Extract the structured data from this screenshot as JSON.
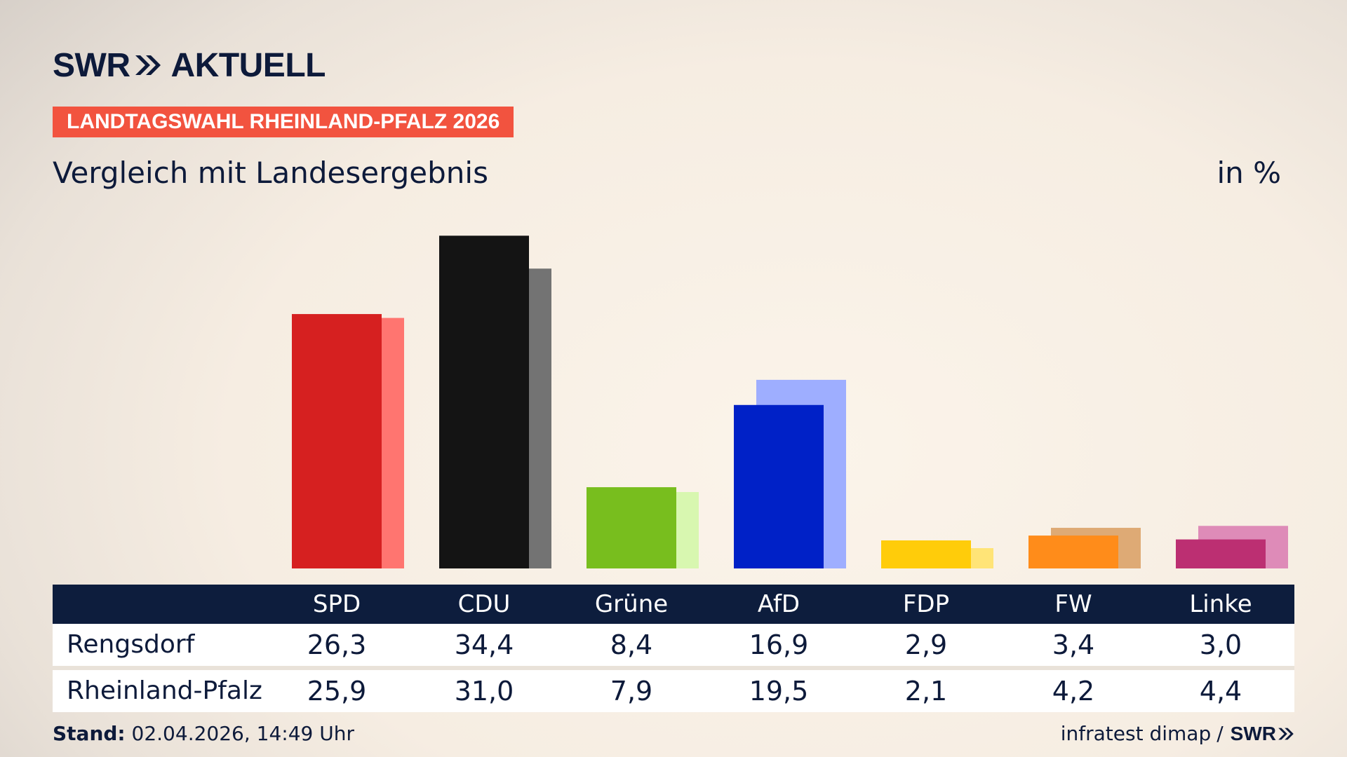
{
  "header": {
    "brand_part1": "SWR",
    "brand_part2": "AKTUELL",
    "tag": "LANDTAGSWAHL RHEINLAND-PFALZ 2026",
    "subtitle": "Vergleich mit Landesergebnis",
    "unit": "in %"
  },
  "chart_data": {
    "type": "bar",
    "categories": [
      "SPD",
      "CDU",
      "Grüne",
      "AfD",
      "FDP",
      "FW",
      "Linke"
    ],
    "series": [
      {
        "name": "Rengsdorf",
        "values": [
          26.3,
          34.4,
          8.4,
          16.9,
          2.9,
          3.4,
          3.0
        ],
        "colors": [
          "#d62020",
          "#141414",
          "#78be1e",
          "#0021c7",
          "#ffcc0a",
          "#ff8c1a",
          "#bc2f72"
        ]
      },
      {
        "name": "Rheinland-Pfalz",
        "values": [
          25.9,
          31.0,
          7.9,
          19.5,
          2.1,
          4.2,
          4.4
        ],
        "colors": [
          "#ff7570",
          "#737373",
          "#d8f7b0",
          "#9eaeff",
          "#ffe477",
          "#deaa75",
          "#de8bb8"
        ]
      }
    ],
    "ylim": [
      0,
      36
    ]
  },
  "table": {
    "rows": [
      {
        "label": "Rengsdorf",
        "values": [
          "26,3",
          "34,4",
          "8,4",
          "16,9",
          "2,9",
          "3,4",
          "3,0"
        ]
      },
      {
        "label": "Rheinland-Pfalz",
        "values": [
          "25,9",
          "31,0",
          "7,9",
          "19,5",
          "2,1",
          "4,2",
          "4,4"
        ]
      }
    ]
  },
  "footer": {
    "stand_label": "Stand:",
    "stand_value": "02.04.2026, 14:49 Uhr",
    "source": "infratest dimap",
    "separator": "/",
    "source_brand": "SWR"
  },
  "colors": {
    "navy": "#0d1a3a",
    "accent": "#f2533f",
    "header_bg": "#0d1d3d"
  },
  "icons": {
    "brand_chevron": "double-chevron-right-icon"
  }
}
